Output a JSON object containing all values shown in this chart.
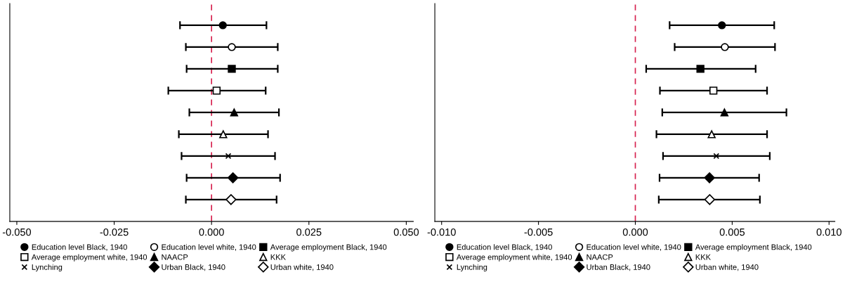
{
  "chart_data": [
    {
      "type": "scatter",
      "orientation": "horizontal",
      "categories": [
        null,
        null,
        null,
        null,
        null,
        null,
        null,
        null,
        null
      ],
      "xlim": [
        -0.0518,
        0.0518
      ],
      "xticks": [
        {
          "value": -0.05,
          "label": "-0.050"
        },
        {
          "value": -0.025,
          "label": "-0.025"
        },
        {
          "value": 0,
          "label": "0.000"
        },
        {
          "value": 0.025,
          "label": "0.025"
        },
        {
          "value": 0.05,
          "label": "0.050"
        }
      ],
      "tick_labels": "x",
      "grid": false,
      "legend": "bottom",
      "ref_lines": [
        {
          "axis": "x",
          "value": 0,
          "color": "#d6204e",
          "line_style": "dashed"
        }
      ],
      "series": [
        {
          "name": "Education level Black, 1940",
          "color": "#000000",
          "marker": "circle",
          "values": [
            0.0029,
            null,
            null,
            null,
            null,
            null,
            null,
            null,
            null
          ],
          "errors": [
            [
              -0.0081,
              0.0141
            ],
            null,
            null,
            null,
            null,
            null,
            null,
            null,
            null
          ]
        },
        {
          "name": "Education level white, 1940",
          "color": "#ffffff",
          "marker": "circle",
          "values": [
            null,
            0.0052,
            null,
            null,
            null,
            null,
            null,
            null,
            null
          ],
          "errors": [
            null,
            [
              -0.0066,
              0.017
            ],
            null,
            null,
            null,
            null,
            null,
            null,
            null
          ]
        },
        {
          "name": "Average employment Black, 1940",
          "color": "#000000",
          "marker": "square",
          "values": [
            null,
            null,
            0.0052,
            null,
            null,
            null,
            null,
            null,
            null
          ],
          "errors": [
            null,
            null,
            [
              -0.0064,
              0.017
            ],
            null,
            null,
            null,
            null,
            null,
            null
          ]
        },
        {
          "name": "Average employment white, 1940",
          "color": "#ffffff",
          "marker": "square",
          "values": [
            null,
            null,
            null,
            0.0013,
            null,
            null,
            null,
            null,
            null
          ],
          "errors": [
            null,
            null,
            null,
            [
              -0.0111,
              0.0139
            ],
            null,
            null,
            null,
            null,
            null
          ]
        },
        {
          "name": "NAACP",
          "color": "#000000",
          "marker": "triangle",
          "values": [
            null,
            null,
            null,
            null,
            0.0058,
            null,
            null,
            null,
            null
          ],
          "errors": [
            null,
            null,
            null,
            null,
            [
              -0.0057,
              0.0173
            ],
            null,
            null,
            null,
            null
          ]
        },
        {
          "name": "KKK",
          "color": "#ffffff",
          "marker": "triangle",
          "values": [
            null,
            null,
            null,
            null,
            null,
            0.003,
            null,
            null,
            null
          ],
          "errors": [
            null,
            null,
            null,
            null,
            null,
            [
              -0.0084,
              0.0145
            ],
            null,
            null,
            null
          ]
        },
        {
          "name": "Lynching",
          "color": "#000000",
          "marker": "cross",
          "values": [
            null,
            null,
            null,
            null,
            null,
            null,
            0.0043,
            null,
            null
          ],
          "errors": [
            null,
            null,
            null,
            null,
            null,
            null,
            [
              -0.0077,
              0.0163
            ],
            null,
            null
          ]
        },
        {
          "name": "Urban Black, 1940",
          "color": "#000000",
          "marker": "diamond",
          "values": [
            null,
            null,
            null,
            null,
            null,
            null,
            null,
            0.0055,
            null
          ],
          "errors": [
            null,
            null,
            null,
            null,
            null,
            null,
            null,
            [
              -0.0064,
              0.0176
            ],
            null
          ]
        },
        {
          "name": "Urban white, 1940",
          "color": "#ffffff",
          "marker": "diamond",
          "values": [
            null,
            null,
            null,
            null,
            null,
            null,
            null,
            null,
            0.005
          ],
          "errors": [
            null,
            null,
            null,
            null,
            null,
            null,
            null,
            null,
            [
              -0.0066,
              0.0167
            ]
          ]
        }
      ]
    },
    {
      "type": "scatter",
      "orientation": "horizontal",
      "categories": [
        null,
        null,
        null,
        null,
        null,
        null,
        null,
        null,
        null
      ],
      "xlim": [
        -0.01035,
        0.0103
      ],
      "xticks": [
        {
          "value": -0.01,
          "label": "-0.010"
        },
        {
          "value": -0.005,
          "label": "-0.005"
        },
        {
          "value": 0,
          "label": "0.000"
        },
        {
          "value": 0.005,
          "label": "0.005"
        },
        {
          "value": 0.01,
          "label": "0.010"
        }
      ],
      "tick_labels": "x",
      "grid": false,
      "legend": "bottom",
      "ref_lines": [
        {
          "axis": "x",
          "value": 0,
          "color": "#d6204e",
          "line_style": "dashed"
        }
      ],
      "series": [
        {
          "name": "Education level Black, 1940",
          "color": "#000000",
          "marker": "circle",
          "values": [
            0.00447,
            null,
            null,
            null,
            null,
            null,
            null,
            null,
            null
          ],
          "errors": [
            [
              0.00177,
              0.00717
            ],
            null,
            null,
            null,
            null,
            null,
            null,
            null,
            null
          ]
        },
        {
          "name": "Education level white, 1940",
          "color": "#ffffff",
          "marker": "circle",
          "values": [
            null,
            0.00462,
            null,
            null,
            null,
            null,
            null,
            null,
            null
          ],
          "errors": [
            null,
            [
              0.00203,
              0.00721
            ],
            null,
            null,
            null,
            null,
            null,
            null,
            null
          ]
        },
        {
          "name": "Average employment Black, 1940",
          "color": "#000000",
          "marker": "square",
          "values": [
            null,
            null,
            0.00336,
            null,
            null,
            null,
            null,
            null,
            null
          ],
          "errors": [
            null,
            null,
            [
              0.00056,
              0.00621
            ],
            null,
            null,
            null,
            null,
            null,
            null
          ]
        },
        {
          "name": "Average employment white, 1940",
          "color": "#ffffff",
          "marker": "square",
          "values": [
            null,
            null,
            null,
            0.00403,
            null,
            null,
            null,
            null,
            null
          ],
          "errors": [
            null,
            null,
            null,
            [
              0.00127,
              0.0068
            ],
            null,
            null,
            null,
            null,
            null
          ]
        },
        {
          "name": "NAACP",
          "color": "#000000",
          "marker": "triangle",
          "values": [
            null,
            null,
            null,
            null,
            0.0046,
            null,
            null,
            null,
            null
          ],
          "errors": [
            null,
            null,
            null,
            null,
            [
              0.00139,
              0.0078
            ],
            null,
            null,
            null,
            null
          ]
        },
        {
          "name": "KKK",
          "color": "#ffffff",
          "marker": "triangle",
          "values": [
            null,
            null,
            null,
            null,
            null,
            0.00394,
            null,
            null,
            null
          ],
          "errors": [
            null,
            null,
            null,
            null,
            null,
            [
              0.00109,
              0.0068
            ],
            null,
            null,
            null
          ]
        },
        {
          "name": "Lynching",
          "color": "#000000",
          "marker": "cross",
          "values": [
            null,
            null,
            null,
            null,
            null,
            null,
            0.00418,
            null,
            null
          ],
          "errors": [
            null,
            null,
            null,
            null,
            null,
            null,
            [
              0.00143,
              0.00694
            ],
            null,
            null
          ]
        },
        {
          "name": "Urban Black, 1940",
          "color": "#000000",
          "marker": "diamond",
          "values": [
            null,
            null,
            null,
            null,
            null,
            null,
            null,
            0.00383,
            null
          ],
          "errors": [
            null,
            null,
            null,
            null,
            null,
            null,
            null,
            [
              0.00125,
              0.00639
            ],
            null
          ]
        },
        {
          "name": "Urban white, 1940",
          "color": "#ffffff",
          "marker": "diamond",
          "values": [
            null,
            null,
            null,
            null,
            null,
            null,
            null,
            null,
            0.00384
          ],
          "errors": [
            null,
            null,
            null,
            null,
            null,
            null,
            null,
            null,
            [
              0.00121,
              0.00643
            ]
          ]
        }
      ]
    }
  ]
}
